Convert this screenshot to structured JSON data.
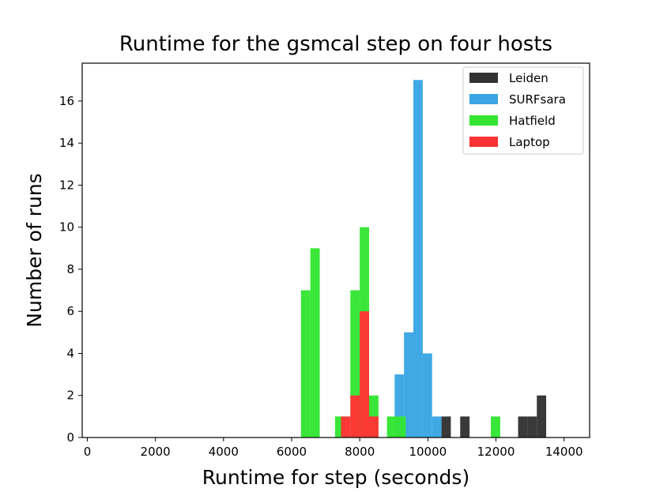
{
  "chart_data": {
    "type": "bar",
    "title": "Runtime for the gsmcal step on four hosts",
    "xlabel": "Runtime for step (seconds)",
    "ylabel": "Number of runs",
    "xlim": [
      -150,
      14750
    ],
    "ylim": [
      0,
      17.8
    ],
    "xticks": [
      0,
      2000,
      4000,
      6000,
      8000,
      10000,
      12000,
      14000
    ],
    "yticks": [
      0,
      2,
      4,
      6,
      8,
      10,
      12,
      14,
      16
    ],
    "bin_width": 275,
    "legend_position": "top-right",
    "series": [
      {
        "name": "Leiden",
        "color": "#333333",
        "bins": [
          {
            "x": 10400,
            "count": 1
          },
          {
            "x": 10950,
            "count": 1
          },
          {
            "x": 12650,
            "count": 1
          },
          {
            "x": 12925,
            "count": 1
          },
          {
            "x": 13200,
            "count": 2
          }
        ]
      },
      {
        "name": "SURFsara",
        "color": "#3aa5e3",
        "bins": [
          {
            "x": 9025,
            "count": 3
          },
          {
            "x": 9300,
            "count": 5
          },
          {
            "x": 9575,
            "count": 17
          },
          {
            "x": 9850,
            "count": 4
          },
          {
            "x": 10125,
            "count": 1
          }
        ]
      },
      {
        "name": "Hatfield",
        "color": "#33e533",
        "bins": [
          {
            "x": 6275,
            "count": 7
          },
          {
            "x": 6550,
            "count": 9
          },
          {
            "x": 7275,
            "count": 1
          },
          {
            "x": 7725,
            "count": 7
          },
          {
            "x": 8000,
            "count": 10
          },
          {
            "x": 8275,
            "count": 2
          },
          {
            "x": 8800,
            "count": 1
          },
          {
            "x": 9075,
            "count": 1
          },
          {
            "x": 11850,
            "count": 1
          }
        ]
      },
      {
        "name": "Laptop",
        "color": "#ff3333",
        "bins": [
          {
            "x": 7450,
            "count": 1
          },
          {
            "x": 7725,
            "count": 2
          },
          {
            "x": 8000,
            "count": 6
          },
          {
            "x": 8275,
            "count": 1
          }
        ]
      }
    ]
  }
}
